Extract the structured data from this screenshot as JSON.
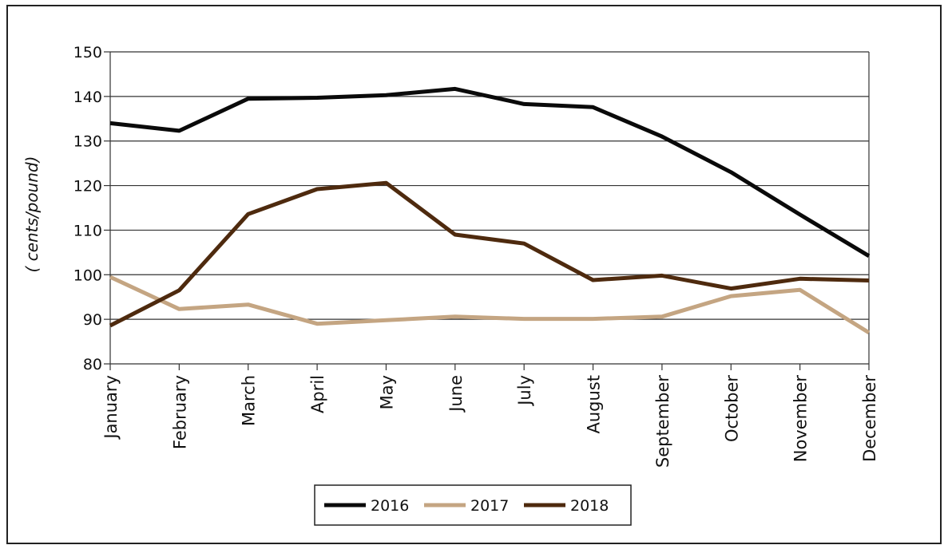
{
  "chart_data": {
    "type": "line",
    "title": "",
    "xlabel": "",
    "ylabel": "( cents/pound)",
    "ylim": [
      80,
      150
    ],
    "yticks": [
      80,
      90,
      100,
      110,
      120,
      130,
      140,
      150
    ],
    "grid": "horizontal",
    "legend_position": "bottom-center",
    "categories": [
      "January",
      "February",
      "March",
      "April",
      "May",
      "June",
      "July",
      "August",
      "September",
      "October",
      "November",
      "December"
    ],
    "series": [
      {
        "name": "2016",
        "color": "#0a0a0a",
        "values": [
          134.0,
          132.3,
          139.5,
          139.7,
          140.3,
          141.7,
          138.3,
          137.6,
          131.0,
          123.0,
          113.5,
          104.2
        ]
      },
      {
        "name": "2017",
        "color": "#c4a582",
        "values": [
          99.5,
          92.3,
          93.3,
          89.0,
          89.8,
          90.6,
          90.1,
          90.1,
          90.6,
          95.2,
          96.6,
          87.0
        ]
      },
      {
        "name": "2018",
        "color": "#4e2a0e",
        "values": [
          88.6,
          96.5,
          113.6,
          119.2,
          120.6,
          109.0,
          107.0,
          98.8,
          99.8,
          96.9,
          99.1,
          98.7
        ]
      }
    ]
  }
}
